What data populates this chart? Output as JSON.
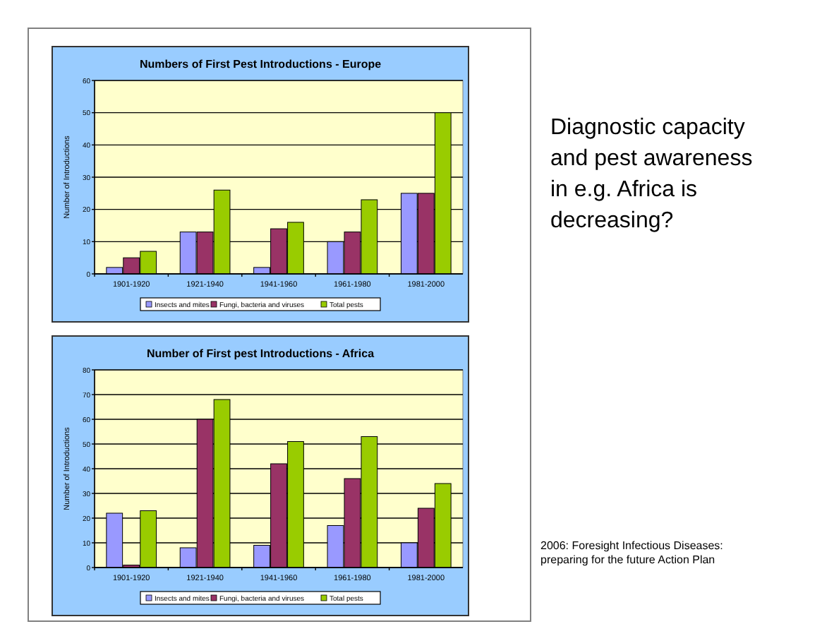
{
  "chart_data": [
    {
      "type": "bar",
      "title": "Numbers of First Pest Introductions - Europe",
      "ylabel": "Number of Introductions",
      "categories": [
        "1901-1920",
        "1921-1940",
        "1941-1960",
        "1961-1980",
        "1981-2000"
      ],
      "series": [
        {
          "name": "Insects and mites",
          "color": "#9999ff",
          "values": [
            2,
            13,
            2,
            10,
            25
          ]
        },
        {
          "name": "Fungi, bacteria and viruses",
          "color": "#993366",
          "values": [
            5,
            13,
            14,
            13,
            25
          ]
        },
        {
          "name": "Total pests",
          "color": "#99cc00",
          "values": [
            7,
            26,
            16,
            23,
            50
          ]
        }
      ],
      "ylim": [
        0,
        60
      ],
      "yticks": [
        0,
        10,
        20,
        30,
        40,
        50,
        60
      ],
      "grid": "y",
      "legend": "bottom"
    },
    {
      "type": "bar",
      "title": "Number of First pest Introductions - Africa",
      "ylabel": "Number of Introductions",
      "categories": [
        "1901-1920",
        "1921-1940",
        "1941-1960",
        "1961-1980",
        "1981-2000"
      ],
      "series": [
        {
          "name": "Insects and mites",
          "color": "#9999ff",
          "values": [
            22,
            8,
            9,
            17,
            10
          ]
        },
        {
          "name": "Fungi, bacteria and viruses",
          "color": "#993366",
          "values": [
            1,
            60,
            42,
            36,
            24
          ]
        },
        {
          "name": "Total pests",
          "color": "#99cc00",
          "values": [
            23,
            68,
            51,
            53,
            34
          ]
        }
      ],
      "ylim": [
        0,
        80
      ],
      "yticks": [
        0,
        10,
        20,
        30,
        40,
        50,
        60,
        70,
        80
      ],
      "grid": "y",
      "legend": "bottom"
    },
    {
      "type": "other",
      "annotations": [
        "Diagnostic capacity and pest awareness in e.g. Africa is decreasing?",
        "2006: Foresight Infectious Diseases: preparing for the future Action Plan"
      ]
    }
  ]
}
